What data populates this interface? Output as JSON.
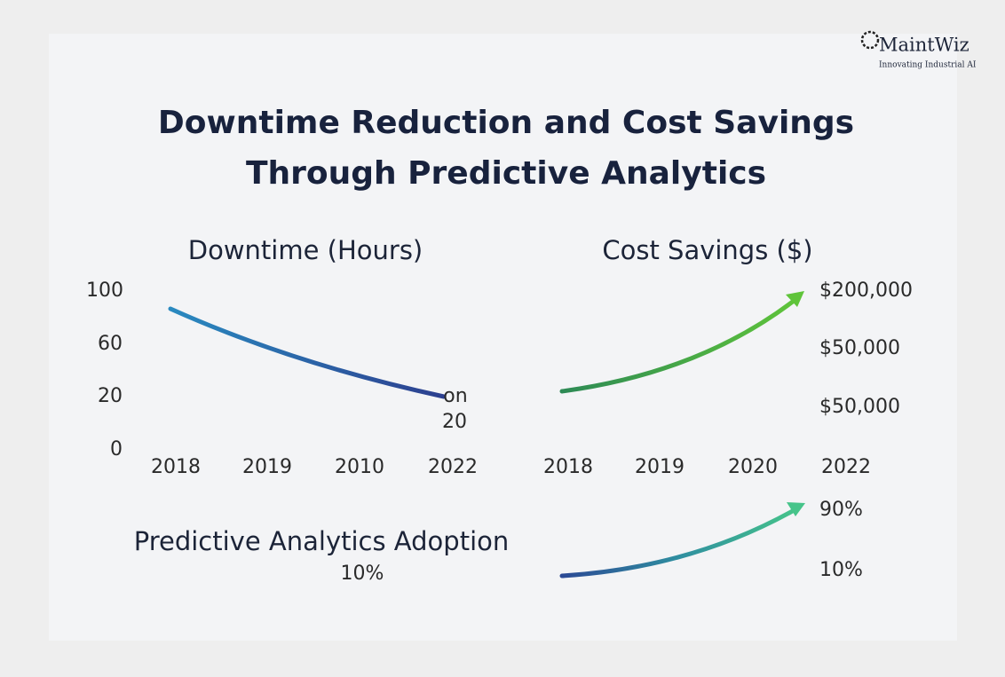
{
  "logo": {
    "name": "MaintWiz",
    "tagline": "Innovating Industrial AI"
  },
  "title": [
    "Downtime Reduction and Cost Savings",
    "Through Predictive Analytics"
  ],
  "downtime": {
    "heading": "Downtime (Hours)",
    "y_labels": [
      "100",
      "60",
      "20",
      "0"
    ],
    "x_labels": [
      "2018",
      "2019",
      "2010",
      "2022"
    ],
    "end_label": [
      "on",
      "20"
    ]
  },
  "cost_savings": {
    "heading": "Cost Savings ($)",
    "y_labels": [
      "$200,000",
      "$50,000",
      "$50,000"
    ],
    "x_labels": [
      "2018",
      "2019",
      "2020",
      "2022"
    ]
  },
  "adoption": {
    "heading": "Predictive Analytics Adoption",
    "start_label": "10%",
    "y_labels": [
      "90%",
      "10%"
    ]
  }
}
